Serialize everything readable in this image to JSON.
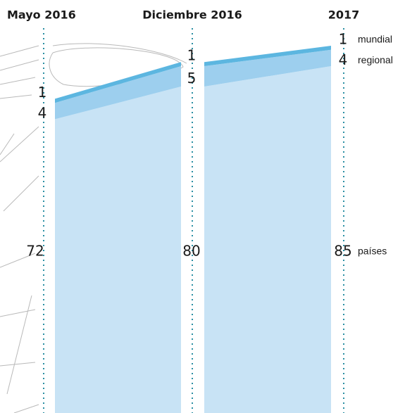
{
  "chart_data": {
    "type": "area",
    "categories": [
      "Mayo 2016",
      "Diciembre 2016",
      "2017"
    ],
    "series": [
      {
        "name": "países",
        "color": "#c8e3f5",
        "values": [
          72,
          80,
          85
        ]
      },
      {
        "name": "regional",
        "color": "#9dcfee",
        "values": [
          4,
          5,
          4
        ]
      },
      {
        "name": "mundial",
        "color": "#5cb6e0",
        "values": [
          1,
          1,
          1
        ]
      }
    ]
  }
}
